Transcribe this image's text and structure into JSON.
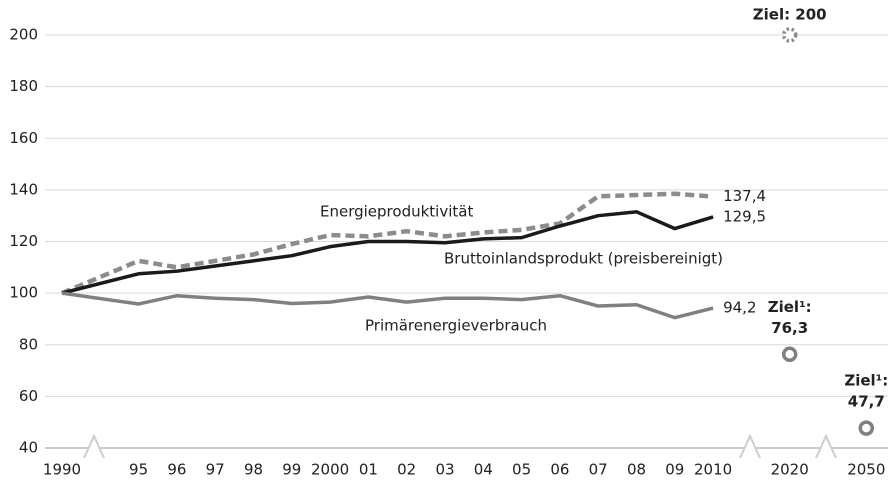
{
  "chart_data": {
    "type": "line",
    "categories": [
      "1990",
      "95",
      "96",
      "97",
      "98",
      "99",
      "2000",
      "01",
      "02",
      "03",
      "04",
      "05",
      "06",
      "07",
      "08",
      "09",
      "2010",
      "2020",
      "2050"
    ],
    "ylim": [
      40,
      200
    ],
    "yticks": [
      40,
      60,
      80,
      100,
      120,
      140,
      160,
      180,
      200
    ],
    "grid": true,
    "series": [
      {
        "name": "Energieproduktivität",
        "color": "#8c8c8c",
        "style": "dashed",
        "values": [
          100,
          112.5,
          110,
          112.5,
          115,
          119,
          122.5,
          122,
          124,
          122,
          123.5,
          124.5,
          127,
          137.5,
          138,
          138.5,
          137.4,
          null,
          null
        ],
        "end_label": "137,4"
      },
      {
        "name": "Bruttoinlandsprodukt (preisbereinigt)",
        "color": "#1a1a1a",
        "style": "solid",
        "values": [
          100,
          107.5,
          108.5,
          110.5,
          112.5,
          114.5,
          118,
          120,
          120,
          119.5,
          121,
          121.5,
          126,
          130,
          131.5,
          125,
          129.5,
          null,
          null
        ],
        "end_label": "129,5"
      },
      {
        "name": "Primärenergieverbrauch",
        "color": "#808080",
        "style": "solid",
        "values": [
          100,
          95.8,
          99,
          98,
          97.5,
          96,
          96.5,
          98.5,
          96.5,
          98,
          98,
          97.5,
          99,
          95,
          95.5,
          90.5,
          94.2,
          null,
          null
        ],
        "end_label": "94,2"
      }
    ],
    "targets": [
      {
        "label": "Ziel: 200",
        "category": "2020",
        "value": 200,
        "color": "#8c8c8c",
        "style": "dotted"
      },
      {
        "label": "Ziel¹:",
        "category": "2020",
        "value": 76.3,
        "value_label": "76,3",
        "color": "#808080",
        "style": "solid"
      },
      {
        "label": "Ziel¹:",
        "category": "2050",
        "value": 47.7,
        "value_label": "47,7",
        "color": "#808080",
        "style": "solid"
      }
    ]
  }
}
